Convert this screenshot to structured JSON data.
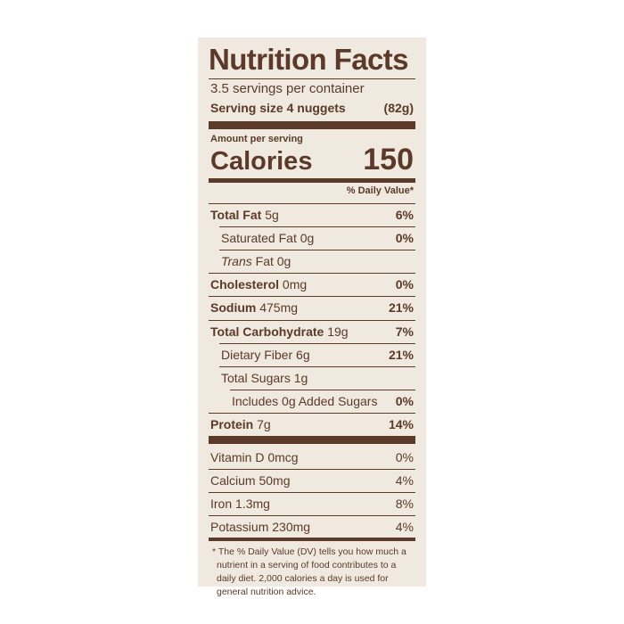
{
  "header": {
    "title": "Nutrition Facts",
    "servings": "3.5 servings per container",
    "serving_size_label": "Serving size 4 nuggets",
    "serving_size_value": "(82g)"
  },
  "calories": {
    "amount_label": "Amount per serving",
    "label": "Calories",
    "value": "150"
  },
  "daily_value_header": "% Daily Value*",
  "nutrients": [
    {
      "name": "Total Fat",
      "amount": "5g",
      "dv": "6%",
      "bold": true,
      "indent": 0
    },
    {
      "name": "Saturated Fat",
      "amount": "0g",
      "dv": "0%",
      "bold": false,
      "indent": 1
    },
    {
      "italic": "Trans",
      "name": "Fat",
      "amount": "0g",
      "bold": false,
      "indent": 1
    },
    {
      "name": "Cholesterol",
      "amount": "0mg",
      "dv": "0%",
      "bold": true,
      "indent": 0
    },
    {
      "name": "Sodium",
      "amount": "475mg",
      "dv": "21%",
      "bold": true,
      "indent": 0
    },
    {
      "name": "Total Carbohydrate",
      "amount": "19g",
      "dv": "7%",
      "bold": true,
      "indent": 0
    },
    {
      "name": "Dietary Fiber",
      "amount": "6g",
      "dv": "21%",
      "bold": false,
      "indent": 1
    },
    {
      "name": "Total Sugars",
      "amount": "1g",
      "bold": false,
      "indent": 1
    },
    {
      "name": "Includes 0g Added Sugars",
      "dv": "0%",
      "bold": false,
      "indent": 2
    },
    {
      "name": "Protein",
      "amount": "7g",
      "dv": "14%",
      "bold": true,
      "indent": 0
    }
  ],
  "vitamins": [
    {
      "name": "Vitamin D",
      "amount": "0mcg",
      "dv": "0%"
    },
    {
      "name": "Calcium",
      "amount": "50mg",
      "dv": "4%"
    },
    {
      "name": "Iron",
      "amount": "1.3mg",
      "dv": "8%"
    },
    {
      "name": "Potassium",
      "amount": "230mg",
      "dv": "4%"
    }
  ],
  "footnote": "* The % Daily Value (DV) tells you how much a nutrient in a serving of food contributes to a daily diet. 2,000 calories a day is used for general nutrition advice."
}
